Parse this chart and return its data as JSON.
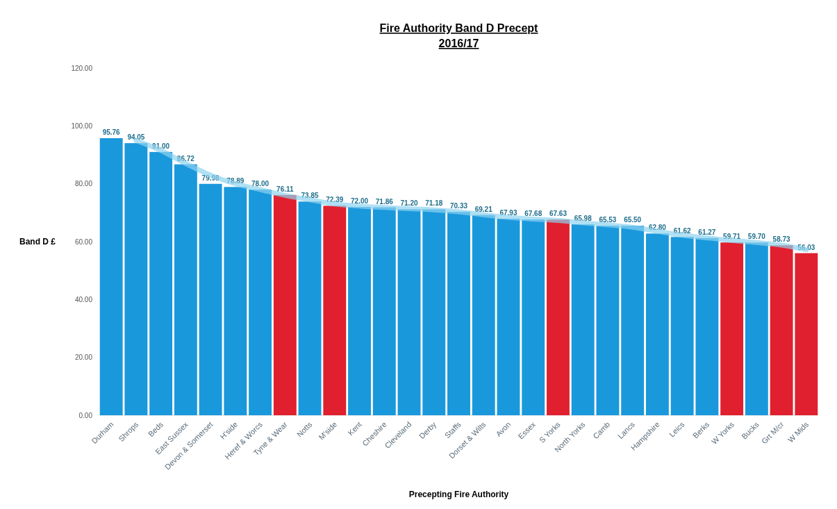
{
  "chart_data": {
    "type": "bar",
    "title": "Fire Authority Band D Precept",
    "subtitle": "2016/17",
    "xlabel": "Precepting Fire Authority",
    "ylabel": "Band D £",
    "categories": [
      "Durham",
      "Shrops",
      "Beds",
      "East Sussex",
      "Devon & Somerset",
      "H'side",
      "Heref & Worcs",
      "Tyne & Wear",
      "Notts",
      "M'side",
      "Kent",
      "Cheshire",
      "Cleveland",
      "Derby",
      "Staffs",
      "Dorset & Wilts",
      "Avon",
      "Essex",
      "S Yorks",
      "North Yorks",
      "Camb",
      "Lancs",
      "Hampshire",
      "Leics",
      "Berks",
      "W Yorks",
      "Bucks",
      "Grt M/cr",
      "W Mids"
    ],
    "series": [
      {
        "values": [
          95.76,
          94.05,
          91.0,
          86.72,
          79.98,
          78.89,
          78.0,
          76.11,
          73.85,
          72.39,
          72.0,
          71.86,
          71.2,
          71.18,
          70.33,
          69.21,
          67.93,
          67.68,
          67.63,
          65.98,
          65.53,
          65.5,
          62.8,
          61.62,
          61.27,
          59.71,
          59.7,
          58.73,
          56.03
        ],
        "colors": [
          "#1a98dc",
          "#1a98dc",
          "#1a98dc",
          "#1a98dc",
          "#1a98dc",
          "#1a98dc",
          "#1a98dc",
          "#e0202e",
          "#1a98dc",
          "#e0202e",
          "#1a98dc",
          "#1a98dc",
          "#1a98dc",
          "#1a98dc",
          "#1a98dc",
          "#1a98dc",
          "#1a98dc",
          "#1a98dc",
          "#e0202e",
          "#1a98dc",
          "#1a98dc",
          "#1a98dc",
          "#1a98dc",
          "#1a98dc",
          "#1a98dc",
          "#e0202e",
          "#1a98dc",
          "#e0202e",
          "#e0202e"
        ],
        "value_labels": [
          "95.76",
          "94.05",
          "91.00",
          "86.72",
          "79.98",
          "78.89",
          "78.00",
          "76.11",
          "73.85",
          "72.39",
          "72.00",
          "71.86",
          "71.20",
          "71.18",
          "70.33",
          "69.21",
          "67.93",
          "67.68",
          "67.63",
          "65.98",
          "65.53",
          "65.50",
          "62.80",
          "61.62",
          "61.27",
          "59.71",
          "59.70",
          "58.73",
          "56.03"
        ]
      },
      {
        "type": "line",
        "color": "#8fd3f0",
        "values": [
          null,
          95,
          91.5,
          87,
          83,
          80,
          78,
          76,
          74.5,
          73,
          72.3,
          71.8,
          71.4,
          71,
          70.3,
          69.3,
          68.4,
          67.8,
          67.3,
          66.5,
          65.8,
          65,
          63.6,
          62.2,
          61.3,
          60.4,
          59.7,
          58.8,
          57.2
        ]
      }
    ],
    "ylim": [
      0,
      120
    ],
    "yticks": [
      {
        "value": 0,
        "label": "0.00"
      },
      {
        "value": 20,
        "label": "20.00"
      },
      {
        "value": 40,
        "label": "40.00"
      },
      {
        "value": 60,
        "label": "60.00"
      },
      {
        "value": 80,
        "label": "80.00"
      },
      {
        "value": 100,
        "label": "100.00"
      },
      {
        "value": 120,
        "label": "120.00"
      }
    ]
  }
}
